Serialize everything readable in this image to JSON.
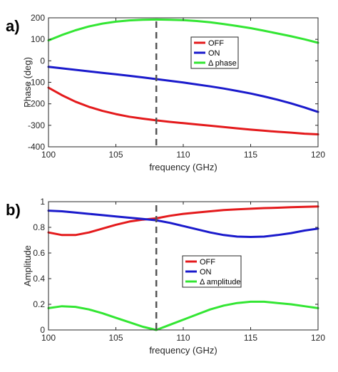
{
  "chart_data": [
    {
      "panel_label": "a)",
      "type": "line",
      "xlabel": "frequency (GHz)",
      "ylabel": "Phase (deg)",
      "xlim": [
        100,
        120
      ],
      "ylim": [
        -400,
        200
      ],
      "xticks": [
        100,
        105,
        110,
        115,
        120
      ],
      "yticks": [
        -400,
        -300,
        -200,
        -100,
        0,
        100,
        200
      ],
      "grid": false,
      "legend_position": "top-right",
      "marker_line_x": 108,
      "series": [
        {
          "name": "OFF",
          "color": "#e41a1c",
          "x": [
            100,
            101,
            102,
            103,
            104,
            105,
            106,
            107,
            108,
            109,
            110,
            111,
            112,
            113,
            114,
            115,
            116,
            117,
            118,
            119,
            120
          ],
          "y": [
            -125,
            -160,
            -190,
            -214,
            -233,
            -248,
            -260,
            -269,
            -277,
            -284,
            -290,
            -296,
            -302,
            -308,
            -314,
            -320,
            -325,
            -330,
            -334,
            -339,
            -342
          ]
        },
        {
          "name": "ON",
          "color": "#1a1acc",
          "x": [
            100,
            101,
            102,
            103,
            104,
            105,
            106,
            107,
            108,
            109,
            110,
            111,
            112,
            113,
            114,
            115,
            116,
            117,
            118,
            119,
            120
          ],
          "y": [
            -28,
            -35,
            -42,
            -49,
            -56,
            -63,
            -70,
            -77,
            -85,
            -93,
            -101,
            -110,
            -119,
            -129,
            -140,
            -152,
            -166,
            -181,
            -198,
            -217,
            -238
          ]
        },
        {
          "name": "Δ phase",
          "color": "#33e633",
          "x": [
            100,
            101,
            102,
            103,
            104,
            105,
            106,
            107,
            108,
            109,
            110,
            111,
            112,
            113,
            114,
            115,
            116,
            117,
            118,
            119,
            120
          ],
          "y": [
            95,
            120,
            142,
            160,
            173,
            182,
            188,
            191,
            192,
            191,
            189,
            185,
            179,
            171,
            162,
            152,
            140,
            127,
            114,
            100,
            84
          ]
        }
      ]
    },
    {
      "panel_label": "b)",
      "type": "line",
      "xlabel": "frequency (GHz)",
      "ylabel": "Amplitude",
      "xlim": [
        100,
        120
      ],
      "ylim": [
        0,
        1
      ],
      "xticks": [
        100,
        105,
        110,
        115,
        120
      ],
      "yticks": [
        0,
        0.2,
        0.4,
        0.6,
        0.8,
        1
      ],
      "ytick_labels": [
        "0",
        "0.2",
        "0.4",
        "0.6",
        "0.8",
        "1"
      ],
      "grid": false,
      "legend_position": "center-right",
      "marker_line_x": 108,
      "series": [
        {
          "name": "OFF",
          "color": "#e41a1c",
          "x": [
            100,
            101,
            102,
            103,
            104,
            105,
            106,
            107,
            108,
            109,
            110,
            111,
            112,
            113,
            114,
            115,
            116,
            117,
            118,
            119,
            120
          ],
          "y": [
            0.76,
            0.74,
            0.74,
            0.76,
            0.79,
            0.82,
            0.845,
            0.86,
            0.87,
            0.89,
            0.905,
            0.915,
            0.925,
            0.935,
            0.94,
            0.945,
            0.95,
            0.953,
            0.957,
            0.96,
            0.962
          ]
        },
        {
          "name": "ON",
          "color": "#1a1acc",
          "x": [
            100,
            101,
            102,
            103,
            104,
            105,
            106,
            107,
            108,
            109,
            110,
            111,
            112,
            113,
            114,
            115,
            116,
            117,
            118,
            119,
            120
          ],
          "y": [
            0.93,
            0.925,
            0.915,
            0.905,
            0.895,
            0.885,
            0.875,
            0.865,
            0.855,
            0.835,
            0.81,
            0.785,
            0.76,
            0.74,
            0.728,
            0.725,
            0.728,
            0.74,
            0.755,
            0.775,
            0.79
          ]
        },
        {
          "name": "Δ amplitude",
          "color": "#33e633",
          "x": [
            100,
            101,
            102,
            103,
            104,
            105,
            106,
            107,
            108,
            109,
            110,
            111,
            112,
            113,
            114,
            115,
            116,
            117,
            118,
            119,
            120
          ],
          "y": [
            0.17,
            0.185,
            0.18,
            0.16,
            0.13,
            0.095,
            0.06,
            0.025,
            0.0,
            0.04,
            0.08,
            0.12,
            0.16,
            0.19,
            0.21,
            0.22,
            0.22,
            0.21,
            0.2,
            0.185,
            0.17
          ]
        }
      ]
    }
  ]
}
